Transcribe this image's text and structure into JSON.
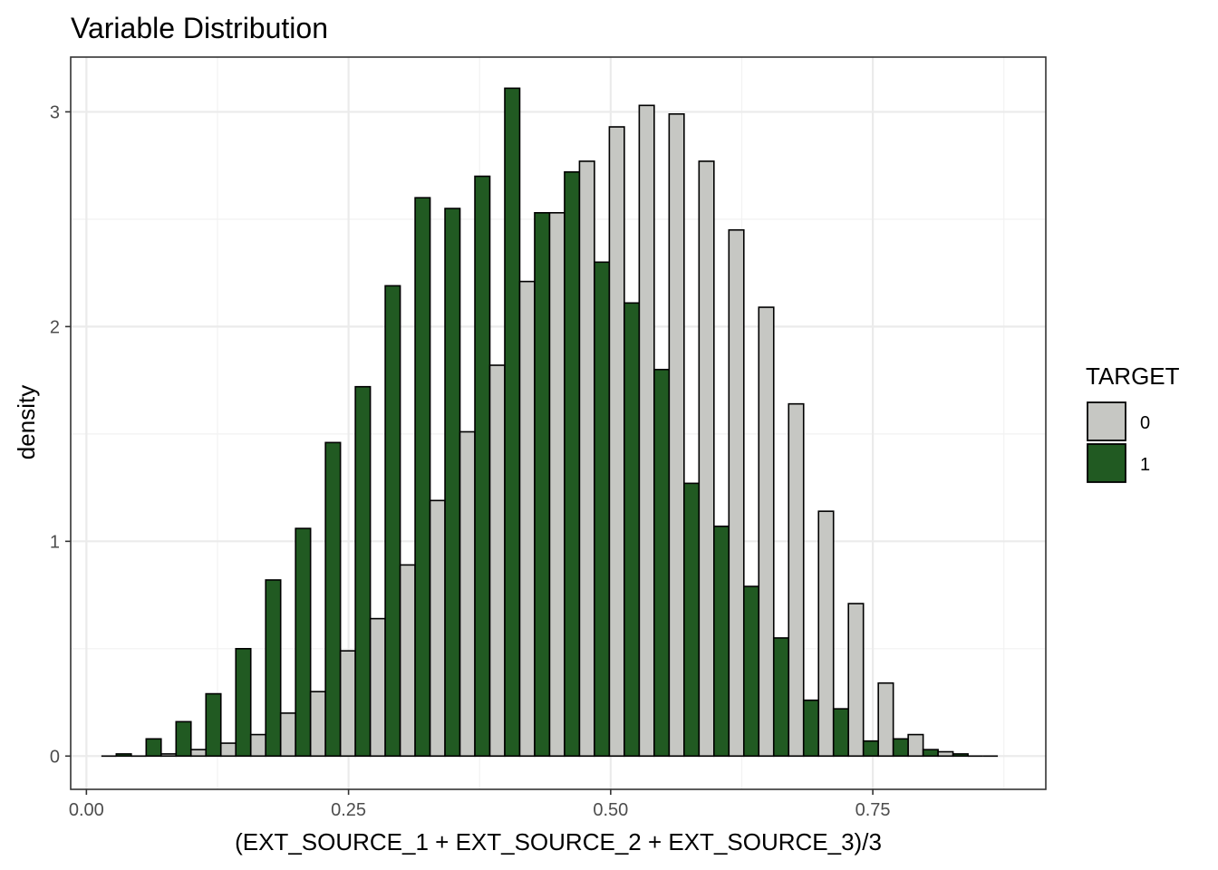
{
  "chart_data": {
    "type": "bar",
    "title": "Variable Distribution",
    "xlabel": "(EXT_SOURCE_1 + EXT_SOURCE_2 + EXT_SOURCE_3)/3",
    "ylabel": "density",
    "xlim": [
      -0.015,
      0.915
    ],
    "ylim": [
      -0.155,
      3.255
    ],
    "x_ticks": [
      0.0,
      0.25,
      0.5,
      0.75
    ],
    "x_tick_labels": [
      "0.00",
      "0.25",
      "0.50",
      "0.75"
    ],
    "y_ticks": [
      0,
      1,
      2,
      3
    ],
    "y_tick_labels": [
      "0",
      "1",
      "2",
      "3"
    ],
    "grid": true,
    "legend": {
      "title": "TARGET",
      "position": "right"
    },
    "bin_width": 0.0285,
    "bins": [
      0.0285,
      0.057,
      0.0855,
      0.114,
      0.1425,
      0.171,
      0.1995,
      0.228,
      0.2565,
      0.285,
      0.3135,
      0.342,
      0.3705,
      0.399,
      0.4275,
      0.456,
      0.4845,
      0.513,
      0.5415,
      0.57,
      0.5985,
      0.627,
      0.6555,
      0.684,
      0.7125,
      0.741,
      0.7695,
      0.798,
      0.8265,
      0.855
    ],
    "series": [
      {
        "name": "0",
        "color": "#c6c7c3",
        "values": [
          0.0,
          0.0,
          0.01,
          0.03,
          0.06,
          0.1,
          0.2,
          0.3,
          0.49,
          0.64,
          0.89,
          1.19,
          1.51,
          1.82,
          2.21,
          2.53,
          2.77,
          2.93,
          3.03,
          2.99,
          2.77,
          2.45,
          2.09,
          1.64,
          1.14,
          0.71,
          0.34,
          0.1,
          0.02,
          0.0
        ]
      },
      {
        "name": "1",
        "color": "#215a22",
        "values": [
          0.01,
          0.08,
          0.16,
          0.29,
          0.5,
          0.82,
          1.06,
          1.46,
          1.72,
          2.19,
          2.6,
          2.55,
          2.7,
          3.11,
          2.53,
          2.72,
          2.3,
          2.11,
          1.8,
          1.27,
          1.07,
          0.79,
          0.55,
          0.26,
          0.22,
          0.07,
          0.08,
          0.03,
          0.01,
          0.0
        ]
      }
    ]
  }
}
